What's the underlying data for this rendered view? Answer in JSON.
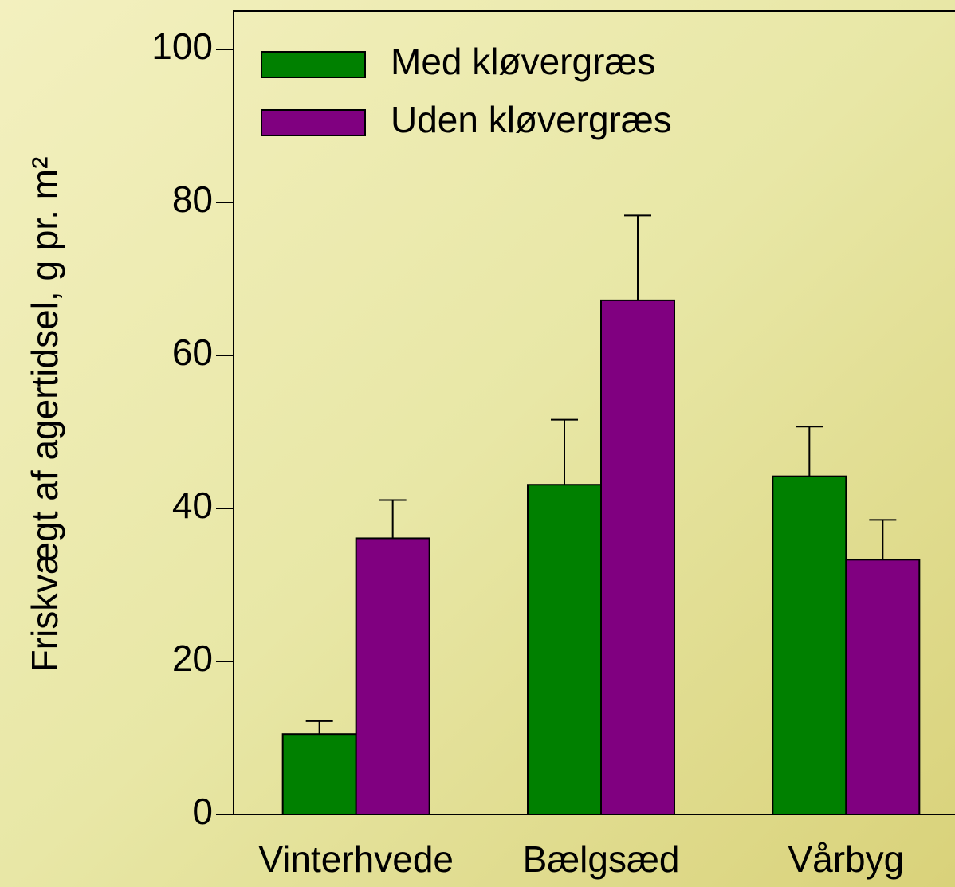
{
  "chart_data": {
    "type": "bar",
    "y_label": "Friskvægt af agertidsel, g pr. m²",
    "categories": [
      "Vinterhvede",
      "Bælgsæd",
      "Vårbyg"
    ],
    "series": [
      {
        "name": "Med kløvergræs",
        "color": "#008000",
        "values": [
          10.5,
          43.1,
          44.2
        ],
        "errors": [
          1.7,
          8.5,
          6.5
        ]
      },
      {
        "name": "Uden kløvergræs",
        "color": "#800080",
        "values": [
          36.1,
          67.2,
          33.3
        ],
        "errors": [
          5.0,
          11.1,
          5.2
        ]
      }
    ],
    "ylim": [
      0,
      105
    ],
    "yticks": [
      0,
      20,
      40,
      60,
      80,
      100
    ],
    "legend": "upper-left"
  }
}
